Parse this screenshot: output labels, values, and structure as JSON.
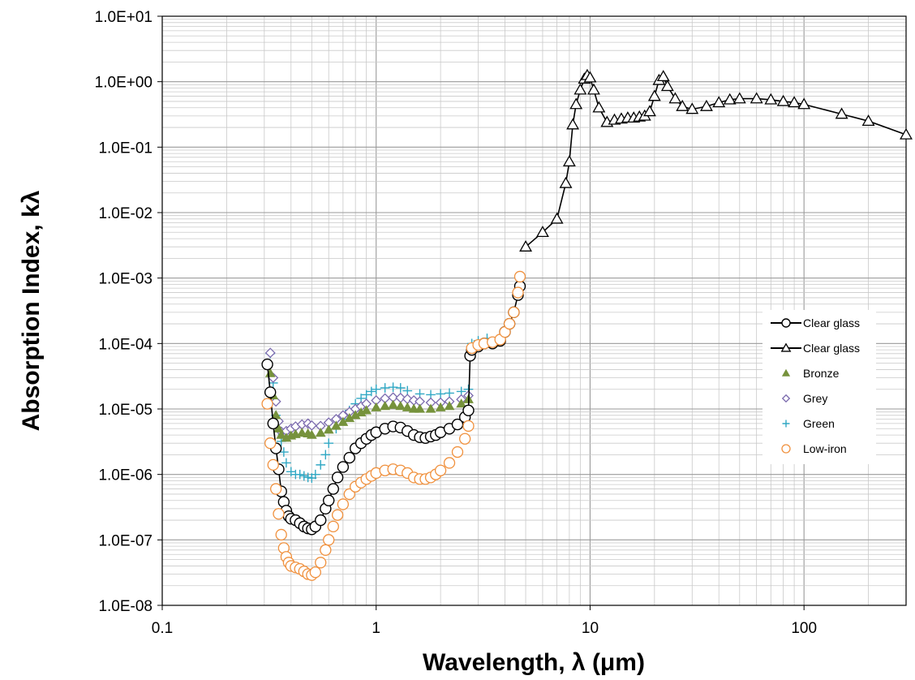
{
  "chart_data": {
    "type": "scatter",
    "xscale": "log",
    "yscale": "log",
    "xlim": [
      0.1,
      300
    ],
    "ylim": [
      1e-08,
      10
    ],
    "xlabel": "Wavelength, λ (μm)",
    "ylabel": "Absorption Index, kλ",
    "xticks": [
      "0.1",
      "1",
      "10",
      "100"
    ],
    "yticks": [
      "1.0E-08",
      "1.0E-07",
      "1.0E-06",
      "1.0E-05",
      "1.0E-04",
      "1.0E-03",
      "1.0E-02",
      "1.0E-01",
      "1.0E+00",
      "1.0E+01"
    ],
    "grid": true,
    "legend_position": "right",
    "colors": {
      "clear": "#000000",
      "bronze": "#76923c",
      "grey": "#7b6aae",
      "green": "#31a8c4",
      "lowiron": "#f0913e"
    },
    "series": [
      {
        "name": "Clear glass",
        "marker": "circle",
        "line": true,
        "color": "#000000",
        "x": [
          0.31,
          0.32,
          0.33,
          0.34,
          0.35,
          0.36,
          0.37,
          0.38,
          0.39,
          0.4,
          0.42,
          0.44,
          0.46,
          0.48,
          0.5,
          0.52,
          0.55,
          0.58,
          0.6,
          0.63,
          0.66,
          0.7,
          0.75,
          0.8,
          0.85,
          0.9,
          0.95,
          1.0,
          1.1,
          1.2,
          1.3,
          1.4,
          1.5,
          1.6,
          1.7,
          1.8,
          1.9,
          2.0,
          2.2,
          2.4,
          2.6,
          2.7,
          2.75,
          2.8,
          3.0,
          3.2,
          3.5,
          3.8,
          4.0,
          4.2,
          4.4,
          4.6,
          4.7
        ],
        "y": [
          4.8e-05,
          1.8e-05,
          6e-06,
          2.5e-06,
          1.2e-06,
          5.5e-07,
          3.8e-07,
          2.8e-07,
          2.3e-07,
          2.1e-07,
          2e-07,
          1.8e-07,
          1.6e-07,
          1.5e-07,
          1.45e-07,
          1.6e-07,
          2e-07,
          3e-07,
          4e-07,
          6e-07,
          9e-07,
          1.3e-06,
          1.8e-06,
          2.5e-06,
          3e-06,
          3.5e-06,
          4e-06,
          4.4e-06,
          5e-06,
          5.4e-06,
          5.2e-06,
          4.6e-06,
          4e-06,
          3.7e-06,
          3.6e-06,
          3.8e-06,
          4e-06,
          4.4e-06,
          5e-06,
          5.8e-06,
          7.5e-06,
          9.5e-06,
          6.5e-05,
          8e-05,
          9e-05,
          0.0001,
          0.0001,
          0.00011,
          0.00015,
          0.0002,
          0.0003,
          0.00055,
          0.00075
        ]
      },
      {
        "name": "Clear glass",
        "marker": "triangle-open",
        "line": true,
        "color": "#000000",
        "x": [
          5,
          6,
          7,
          7.7,
          8,
          8.3,
          8.6,
          9.0,
          9.4,
          9.7,
          10.0,
          10.4,
          11.0,
          12,
          13,
          14,
          15,
          16,
          17,
          18,
          19,
          20,
          21,
          22,
          23,
          25,
          27,
          30,
          35,
          40,
          45,
          50,
          60,
          70,
          80,
          90,
          100,
          150,
          200,
          300
        ],
        "y": [
          0.003,
          0.005,
          0.008,
          0.028,
          0.06,
          0.22,
          0.45,
          0.75,
          1.1,
          1.25,
          1.15,
          0.75,
          0.4,
          0.24,
          0.26,
          0.27,
          0.28,
          0.28,
          0.29,
          0.3,
          0.35,
          0.6,
          1.05,
          1.2,
          0.85,
          0.55,
          0.42,
          0.38,
          0.42,
          0.48,
          0.53,
          0.55,
          0.55,
          0.53,
          0.5,
          0.48,
          0.45,
          0.32,
          0.25,
          0.155
        ]
      },
      {
        "name": "Bronze",
        "marker": "triangle-filled",
        "line": false,
        "color": "#76923c",
        "x": [
          0.32,
          0.33,
          0.34,
          0.35,
          0.36,
          0.38,
          0.4,
          0.42,
          0.45,
          0.48,
          0.5,
          0.55,
          0.6,
          0.65,
          0.7,
          0.75,
          0.8,
          0.85,
          0.9,
          1.0,
          1.1,
          1.2,
          1.3,
          1.4,
          1.5,
          1.6,
          1.8,
          2.0,
          2.2,
          2.5,
          2.7
        ],
        "y": [
          3.5e-05,
          1.6e-05,
          8e-06,
          5e-06,
          4e-06,
          3.6e-06,
          3.9e-06,
          4.1e-06,
          4.3e-06,
          4.2e-06,
          4e-06,
          4.3e-06,
          4.8e-06,
          5.5e-06,
          6.3e-06,
          7.2e-06,
          8e-06,
          8.8e-06,
          9.5e-06,
          1.05e-05,
          1.1e-05,
          1.15e-05,
          1.1e-05,
          1.05e-05,
          1e-05,
          1e-05,
          1e-05,
          1.05e-05,
          1.1e-05,
          1.2e-05,
          1.4e-05
        ]
      },
      {
        "name": "Grey",
        "marker": "diamond-open",
        "line": false,
        "color": "#7b6aae",
        "x": [
          0.32,
          0.33,
          0.34,
          0.35,
          0.36,
          0.38,
          0.4,
          0.42,
          0.45,
          0.48,
          0.5,
          0.55,
          0.6,
          0.65,
          0.7,
          0.75,
          0.8,
          0.85,
          0.9,
          1.0,
          1.1,
          1.2,
          1.3,
          1.4,
          1.5,
          1.6,
          1.8,
          2.0,
          2.2,
          2.5,
          2.7
        ],
        "y": [
          7.2e-05,
          3e-05,
          1.3e-05,
          6.5e-06,
          4.5e-06,
          4.6e-06,
          5e-06,
          5.4e-06,
          5.8e-06,
          6e-06,
          5.6e-06,
          5.5e-06,
          6.2e-06,
          7e-06,
          8e-06,
          9e-06,
          1e-05,
          1.1e-05,
          1.2e-05,
          1.35e-05,
          1.45e-05,
          1.5e-05,
          1.48e-05,
          1.42e-05,
          1.35e-05,
          1.3e-05,
          1.25e-05,
          1.25e-05,
          1.3e-05,
          1.4e-05,
          1.6e-05
        ]
      },
      {
        "name": "Green",
        "marker": "plus",
        "line": false,
        "color": "#31a8c4",
        "x": [
          0.32,
          0.33,
          0.34,
          0.35,
          0.36,
          0.37,
          0.38,
          0.4,
          0.42,
          0.44,
          0.46,
          0.48,
          0.5,
          0.52,
          0.55,
          0.58,
          0.6,
          0.65,
          0.7,
          0.75,
          0.8,
          0.85,
          0.9,
          0.95,
          1.0,
          1.1,
          1.2,
          1.3,
          1.4,
          1.6,
          1.8,
          2.0,
          2.2,
          2.5,
          2.7,
          2.8,
          3.0,
          3.3
        ],
        "y": [
          7e-05,
          2.5e-05,
          8e-06,
          4.5e-06,
          3.2e-06,
          2.2e-06,
          1.5e-06,
          1.1e-06,
          1e-06,
          1e-06,
          9.5e-07,
          9e-07,
          8.8e-07,
          1e-06,
          1.4e-06,
          2e-06,
          3e-06,
          5e-06,
          7e-06,
          9.5e-06,
          1.2e-05,
          1.45e-05,
          1.65e-05,
          1.85e-05,
          2e-05,
          2.1e-05,
          2.15e-05,
          2.1e-05,
          1.9e-05,
          1.7e-05,
          1.65e-05,
          1.7e-05,
          1.75e-05,
          1.85e-05,
          2e-05,
          0.0001,
          0.00011,
          0.00012
        ]
      },
      {
        "name": "Low-iron",
        "marker": "circle-open",
        "line": false,
        "color": "#f0913e",
        "x": [
          0.31,
          0.32,
          0.33,
          0.34,
          0.35,
          0.36,
          0.37,
          0.38,
          0.39,
          0.4,
          0.42,
          0.44,
          0.46,
          0.48,
          0.5,
          0.52,
          0.55,
          0.58,
          0.6,
          0.63,
          0.66,
          0.7,
          0.75,
          0.8,
          0.85,
          0.9,
          0.95,
          1.0,
          1.1,
          1.2,
          1.3,
          1.4,
          1.5,
          1.6,
          1.7,
          1.8,
          1.9,
          2.0,
          2.2,
          2.4,
          2.6,
          2.7,
          2.8,
          3.0,
          3.2,
          3.5,
          3.8,
          4.0,
          4.2,
          4.4,
          4.6,
          4.7
        ],
        "y": [
          1.2e-05,
          3e-06,
          1.4e-06,
          6e-07,
          2.5e-07,
          1.2e-07,
          7.5e-08,
          5.5e-08,
          4.5e-08,
          4e-08,
          3.8e-08,
          3.6e-08,
          3.3e-08,
          3e-08,
          2.9e-08,
          3.2e-08,
          4.5e-08,
          7e-08,
          1e-07,
          1.6e-07,
          2.4e-07,
          3.5e-07,
          5e-07,
          6.5e-07,
          7.5e-07,
          8.5e-07,
          9.5e-07,
          1.05e-06,
          1.15e-06,
          1.2e-06,
          1.15e-06,
          1.05e-06,
          9e-07,
          8.5e-07,
          8.5e-07,
          9e-07,
          1e-06,
          1.15e-06,
          1.5e-06,
          2.2e-06,
          3.5e-06,
          5.5e-06,
          8.5e-05,
          9.5e-05,
          0.0001,
          0.000105,
          0.000115,
          0.00015,
          0.0002,
          0.0003,
          0.0006,
          0.00105
        ]
      }
    ]
  }
}
